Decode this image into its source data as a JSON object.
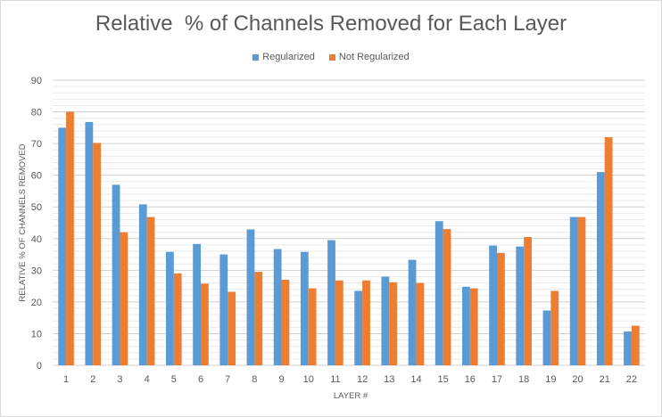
{
  "chart_data": {
    "type": "bar",
    "title": "Relative  % of Channels Removed for Each Layer",
    "xlabel": "LAYER #",
    "ylabel": "RELATIVE % OF CHANNELS REMOVED",
    "ylim": [
      0,
      90
    ],
    "yticks": [
      0,
      10,
      20,
      30,
      40,
      50,
      60,
      70,
      80,
      90
    ],
    "categories": [
      "1",
      "2",
      "3",
      "4",
      "5",
      "6",
      "7",
      "8",
      "9",
      "10",
      "11",
      "12",
      "13",
      "14",
      "15",
      "16",
      "17",
      "18",
      "19",
      "20",
      "21",
      "22"
    ],
    "series": [
      {
        "name": "Regularized",
        "color": "#5b9bd5",
        "values": [
          75,
          76.8,
          57,
          50.8,
          35.8,
          38.3,
          35,
          42.9,
          36.7,
          35.8,
          39.5,
          23.5,
          28,
          33.3,
          45.5,
          24.8,
          37.8,
          37.5,
          17.3,
          46.8,
          61,
          10.7
        ]
      },
      {
        "name": "Not Regularized",
        "color": "#ed7d31",
        "values": [
          80,
          70.2,
          42,
          46.8,
          29,
          25.8,
          23.2,
          29.5,
          27,
          24.3,
          26.8,
          26.8,
          26.2,
          26,
          43,
          24.3,
          35.5,
          40.5,
          23.5,
          46.8,
          72,
          12.5
        ]
      }
    ],
    "grid": true,
    "legend_position": "top-center"
  }
}
